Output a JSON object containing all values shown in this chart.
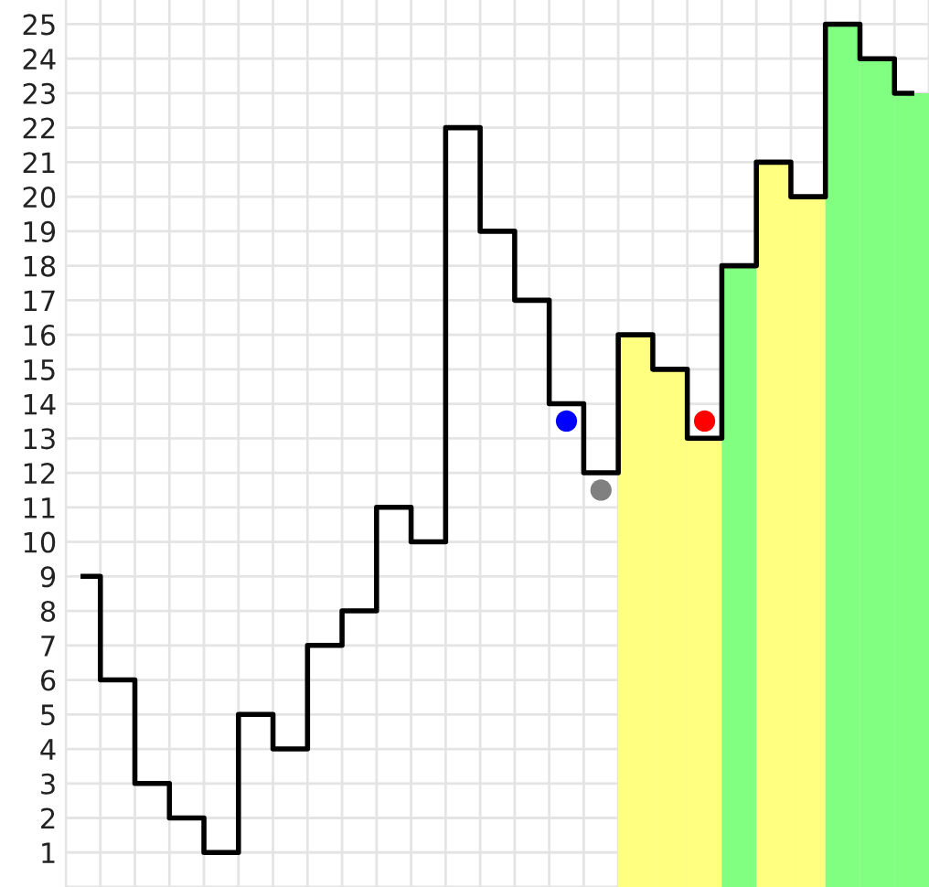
{
  "chart_data": {
    "type": "step",
    "categories": [
      null,
      null,
      null,
      null,
      null,
      null,
      null,
      null,
      null,
      null,
      null,
      null,
      null,
      null,
      null,
      null,
      null,
      null,
      null,
      null,
      null,
      null,
      null,
      null,
      null
    ],
    "ylim": [
      0,
      25.7
    ],
    "yticks": [
      {
        "value": 0,
        "label": null
      },
      1,
      2,
      3,
      4,
      5,
      6,
      7,
      8,
      9,
      10,
      11,
      12,
      13,
      14,
      15,
      16,
      17,
      18,
      19,
      20,
      21,
      22,
      23,
      24,
      25
    ],
    "grid": true,
    "legend": false,
    "tick_labels": "y",
    "series": [
      {
        "type": "bar",
        "colors": [
          null,
          null,
          null,
          null,
          null,
          null,
          null,
          null,
          null,
          null,
          null,
          null,
          null,
          null,
          null,
          null,
          "#ffff80",
          "#ffff80",
          "#ffff80",
          "#80ff80",
          "#ffff80",
          "#ffff80",
          "#80ff80",
          "#80ff80",
          "#80ff80"
        ],
        "values": [
          null,
          null,
          null,
          null,
          null,
          null,
          null,
          null,
          null,
          null,
          null,
          null,
          null,
          null,
          null,
          null,
          16,
          15,
          13,
          18,
          21,
          20,
          25,
          24,
          23
        ]
      },
      {
        "color": "#000000",
        "values": [
          9,
          6,
          3,
          2,
          1,
          5,
          4,
          7,
          8,
          11,
          10,
          22,
          19,
          17,
          14,
          12,
          16,
          15,
          13,
          18,
          21,
          20,
          25,
          24,
          23
        ]
      },
      {
        "type": "scatter",
        "color": "#0000ff",
        "marker": "circle",
        "values": [
          null,
          null,
          null,
          null,
          null,
          null,
          null,
          null,
          null,
          null,
          null,
          null,
          null,
          null,
          13.5,
          null,
          null,
          null,
          null,
          null,
          null,
          null,
          null,
          null,
          null
        ]
      },
      {
        "type": "scatter",
        "color": "#808080",
        "marker": "circle",
        "values": [
          null,
          null,
          null,
          null,
          null,
          null,
          null,
          null,
          null,
          null,
          null,
          null,
          null,
          null,
          null,
          11.5,
          null,
          null,
          null,
          null,
          null,
          null,
          null,
          null,
          null
        ]
      },
      {
        "type": "scatter",
        "color": "#ff0000",
        "marker": "circle",
        "values": [
          null,
          null,
          null,
          null,
          null,
          null,
          null,
          null,
          null,
          null,
          null,
          null,
          null,
          null,
          null,
          null,
          null,
          null,
          13.5,
          null,
          null,
          null,
          null,
          null,
          null
        ]
      }
    ]
  }
}
